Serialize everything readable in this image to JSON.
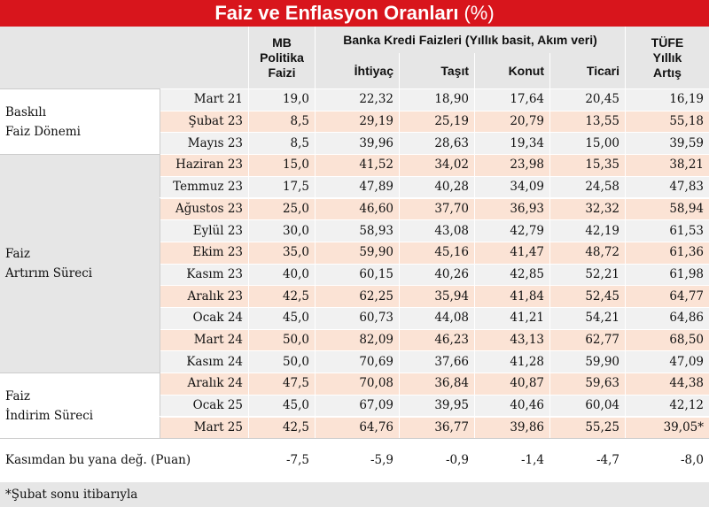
{
  "title": "Faiz ve Enflasyon Oranları",
  "title_unit": "(%)",
  "header": {
    "mb": [
      "MB",
      "Politika",
      "Faizi"
    ],
    "bank_group": "Banka Kredi Faizleri  (Yıllık basit, Akım veri)",
    "columns": [
      "İhtiyaç",
      "Taşıt",
      "Konut",
      "Ticari"
    ],
    "tufe": [
      "TÜFE",
      "Yıllık",
      "Artış"
    ]
  },
  "groups": [
    {
      "label": [
        "Baskılı",
        "Faiz Dönemi"
      ],
      "rows": [
        {
          "date": "Mart 21",
          "values": [
            "19,0",
            "22,32",
            "18,90",
            "17,64",
            "20,45",
            "16,19"
          ]
        },
        {
          "date": "Şubat 23",
          "values": [
            "8,5",
            "29,19",
            "25,19",
            "20,79",
            "13,55",
            "55,18"
          ]
        },
        {
          "date": "Mayıs 23",
          "values": [
            "8,5",
            "39,96",
            "28,63",
            "19,34",
            "15,00",
            "39,59"
          ]
        }
      ]
    },
    {
      "label": [
        "Faiz",
        "Artırım Süreci"
      ],
      "rows": [
        {
          "date": "Haziran 23",
          "values": [
            "15,0",
            "41,52",
            "34,02",
            "23,98",
            "15,35",
            "38,21"
          ]
        },
        {
          "date": "Temmuz 23",
          "values": [
            "17,5",
            "47,89",
            "40,28",
            "34,09",
            "24,58",
            "47,83"
          ]
        },
        {
          "date": "Ağustos 23",
          "values": [
            "25,0",
            "46,60",
            "37,70",
            "36,93",
            "32,32",
            "58,94"
          ]
        },
        {
          "date": "Eylül 23",
          "values": [
            "30,0",
            "58,93",
            "43,08",
            "42,79",
            "42,19",
            "61,53"
          ]
        },
        {
          "date": "Ekim 23",
          "values": [
            "35,0",
            "59,90",
            "45,16",
            "41,47",
            "48,72",
            "61,36"
          ]
        },
        {
          "date": "Kasım 23",
          "values": [
            "40,0",
            "60,15",
            "40,26",
            "42,85",
            "52,21",
            "61,98"
          ]
        },
        {
          "date": "Aralık 23",
          "values": [
            "42,5",
            "62,25",
            "35,94",
            "41,84",
            "52,45",
            "64,77"
          ]
        },
        {
          "date": "Ocak 24",
          "values": [
            "45,0",
            "60,73",
            "44,08",
            "41,21",
            "54,21",
            "64,86"
          ]
        },
        {
          "date": "Mart 24",
          "values": [
            "50,0",
            "82,09",
            "46,23",
            "43,13",
            "62,77",
            "68,50"
          ]
        },
        {
          "date": "Kasım 24",
          "values": [
            "50,0",
            "70,69",
            "37,66",
            "41,28",
            "59,90",
            "47,09"
          ]
        }
      ]
    },
    {
      "label": [
        "Faiz",
        "İndirim Süreci"
      ],
      "rows": [
        {
          "date": "Aralık 24",
          "values": [
            "47,5",
            "70,08",
            "36,84",
            "40,87",
            "59,63",
            "44,38"
          ]
        },
        {
          "date": "Ocak 25",
          "values": [
            "45,0",
            "67,09",
            "39,95",
            "40,46",
            "60,04",
            "42,12"
          ]
        },
        {
          "date": "Mart 25",
          "values": [
            "42,5",
            "64,76",
            "36,77",
            "39,86",
            "55,25",
            "39,05*"
          ]
        }
      ]
    }
  ],
  "summary": {
    "label": "Kasımdan bu yana değ. (Puan)",
    "values": [
      "-7,5",
      "-5,9",
      "-0,9",
      "-1,4",
      "-4,7",
      "-8,0"
    ]
  },
  "footnote": "*Şubat sonu itibarıyla"
}
